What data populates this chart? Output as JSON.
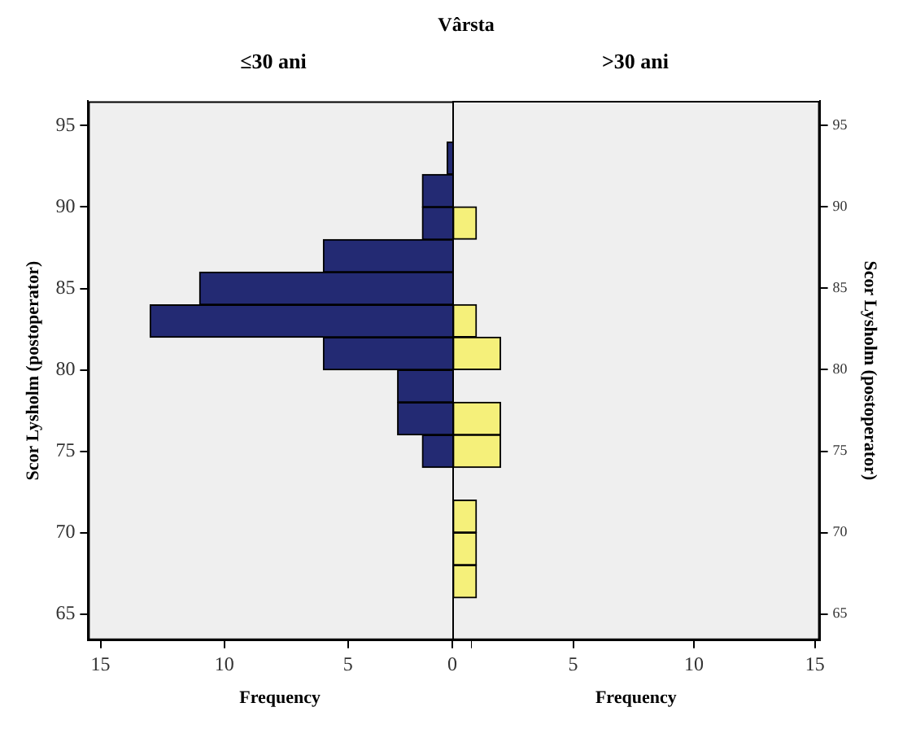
{
  "chart_data": [
    {
      "type": "histogram",
      "title": "Vârsta",
      "subtitle": "≤30 ani",
      "orientation": "horizontal",
      "xlabel": "Frequency",
      "ylabel": "Scor Lysholm (postoperator)",
      "color": "#232a73",
      "bins": [
        66,
        68,
        70,
        72,
        74,
        76,
        78,
        80,
        82,
        84,
        86,
        88,
        90,
        92,
        94
      ],
      "values": [
        0,
        0,
        0,
        0,
        2,
        3,
        3,
        6,
        13,
        11,
        6,
        2,
        2,
        1
      ],
      "xlim": [
        15.5,
        0
      ],
      "xticks": [
        {
          "value": 0,
          "label": null
        },
        5,
        10,
        15
      ],
      "ylim": [
        63.4,
        96.5
      ],
      "yticks": [
        65,
        70,
        75,
        80,
        85,
        90,
        95
      ]
    },
    {
      "type": "histogram",
      "subtitle": ">30 ani",
      "orientation": "horizontal",
      "xlabel": "Frequency",
      "ylabel": "Scor Lysholm (postoperator)",
      "color": "#f5f07a",
      "bins": [
        66,
        68,
        70,
        72,
        74,
        76,
        78,
        80,
        82,
        84,
        86,
        88,
        90,
        92,
        94
      ],
      "values": [
        1,
        1,
        1,
        0,
        2,
        2,
        0,
        2,
        1,
        0,
        0,
        1,
        0,
        0
      ],
      "xlim": [
        0,
        15.2
      ],
      "xticks": [
        0,
        5,
        10,
        15
      ],
      "ylim": [
        63.4,
        96.5
      ],
      "yticks": [
        65,
        70,
        75,
        80,
        85,
        90,
        95
      ]
    }
  ]
}
